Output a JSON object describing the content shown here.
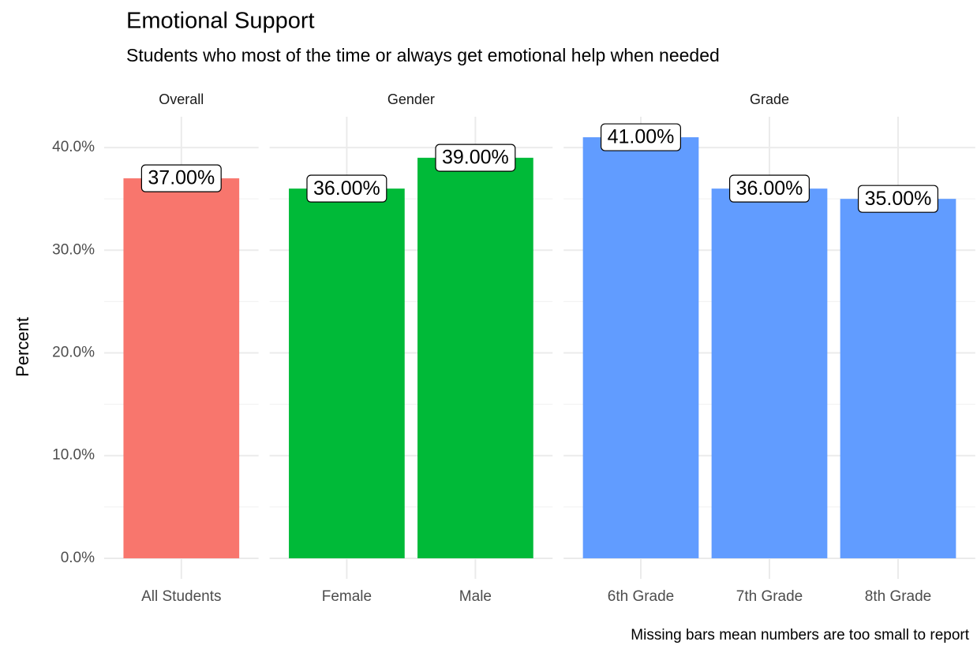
{
  "chart_data": {
    "type": "bar",
    "title": "Emotional Support",
    "subtitle": "Students who most of the time or always get emotional help when needed",
    "y_label": "Percent",
    "caption": "Missing bars mean numbers are too small to report",
    "ylim": [
      -2,
      43
    ],
    "yticks": [
      {
        "value": 0,
        "label": "0.0%"
      },
      {
        "value": 10,
        "label": "10.0%"
      },
      {
        "value": 20,
        "label": "20.0%"
      },
      {
        "value": 30,
        "label": "30.0%"
      },
      {
        "value": 40,
        "label": "40.0%"
      }
    ],
    "minor_yticks": [
      5,
      15,
      25,
      35
    ],
    "grid": true,
    "panels": [
      {
        "title": "Overall",
        "color": "#f8766d",
        "categories": [
          "All Students"
        ],
        "values": [
          37
        ],
        "value_labels": [
          "37.00%"
        ]
      },
      {
        "title": "Gender",
        "color": "#00ba38",
        "categories": [
          "Female",
          "Male"
        ],
        "values": [
          36,
          39
        ],
        "value_labels": [
          "36.00%",
          "39.00%"
        ]
      },
      {
        "title": "Grade",
        "color": "#619cff",
        "categories": [
          "6th Grade",
          "7th Grade",
          "8th Grade"
        ],
        "values": [
          41,
          36,
          35
        ],
        "value_labels": [
          "41.00%",
          "36.00%",
          "35.00%"
        ]
      }
    ]
  }
}
